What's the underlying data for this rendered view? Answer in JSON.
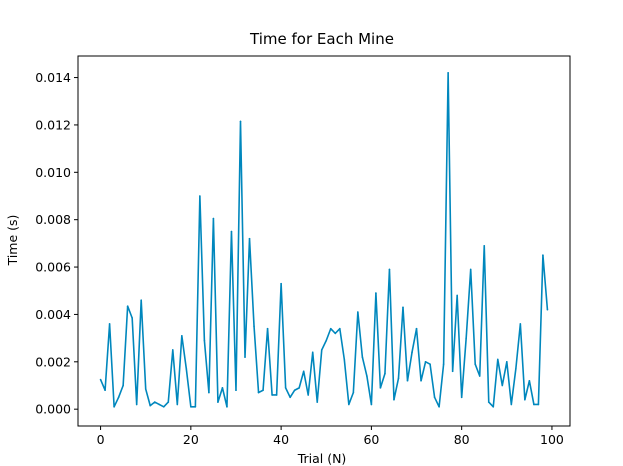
{
  "chart_data": {
    "type": "line",
    "title": "Time for Each Mine",
    "xlabel": "Trial (N)",
    "ylabel": "Time (s)",
    "xlim": [
      -5,
      104
    ],
    "ylim": [
      -0.00071,
      0.01491
    ],
    "x_ticks": [
      0,
      20,
      40,
      60,
      80,
      100
    ],
    "y_ticks": [
      0.0,
      0.002,
      0.004,
      0.006,
      0.008,
      0.01,
      0.012,
      0.014
    ],
    "x_tick_labels": [
      "0",
      "20",
      "40",
      "60",
      "80",
      "100"
    ],
    "y_tick_labels": [
      "0.000",
      "0.002",
      "0.004",
      "0.006",
      "0.008",
      "0.010",
      "0.012",
      "0.014"
    ],
    "grid": false,
    "series": [
      {
        "color": "#0087BD",
        "x": [
          0,
          1,
          2,
          3,
          4,
          5,
          6,
          7,
          8,
          9,
          10,
          11,
          12,
          13,
          14,
          15,
          16,
          17,
          18,
          19,
          20,
          21,
          22,
          23,
          24,
          25,
          26,
          27,
          28,
          29,
          30,
          31,
          32,
          33,
          34,
          35,
          36,
          37,
          38,
          39,
          40,
          41,
          42,
          43,
          44,
          45,
          46,
          47,
          48,
          49,
          50,
          51,
          52,
          53,
          54,
          55,
          56,
          57,
          58,
          59,
          60,
          61,
          62,
          63,
          64,
          65,
          66,
          67,
          68,
          69,
          70,
          71,
          72,
          73,
          74,
          75,
          76,
          77,
          78,
          79,
          80,
          81,
          82,
          83,
          84,
          85,
          86,
          87,
          88,
          89,
          90,
          91,
          92,
          93,
          94,
          95,
          96,
          97,
          98,
          99
        ],
        "y": [
          0.00125,
          0.0008,
          0.0036,
          0.0001,
          0.0005,
          0.001,
          0.00435,
          0.00385,
          0.0002,
          0.0046,
          0.00085,
          0.00015,
          0.0003,
          0.0002,
          0.0001,
          0.0003,
          0.0025,
          0.0002,
          0.0031,
          0.0017,
          0.0001,
          0.0001,
          0.009,
          0.0029,
          0.0007,
          0.00805,
          0.0003,
          0.0009,
          0.0001,
          0.0075,
          0.0008,
          0.01215,
          0.0022,
          0.0072,
          0.0035,
          0.0007,
          0.0008,
          0.0034,
          0.0006,
          0.0006,
          0.0053,
          0.0009,
          0.0005,
          0.0008,
          0.0009,
          0.0016,
          0.0006,
          0.0024,
          0.0003,
          0.0025,
          0.0029,
          0.0034,
          0.0032,
          0.0034,
          0.0021,
          0.0002,
          0.0007,
          0.0041,
          0.0022,
          0.0014,
          0.0002,
          0.0049,
          0.0009,
          0.0015,
          0.0059,
          0.0004,
          0.0013,
          0.0043,
          0.0012,
          0.0024,
          0.0034,
          0.0012,
          0.002,
          0.0019,
          0.0005,
          0.0001,
          0.0019,
          0.0142,
          0.0016,
          0.0048,
          0.0005,
          0.003,
          0.0059,
          0.0019,
          0.0014,
          0.0069,
          0.0003,
          0.0001,
          0.0021,
          0.001,
          0.002,
          0.0002,
          0.0017,
          0.0036,
          0.0004,
          0.0012,
          0.0002,
          0.0002,
          0.0065,
          0.0042
        ]
      }
    ]
  }
}
